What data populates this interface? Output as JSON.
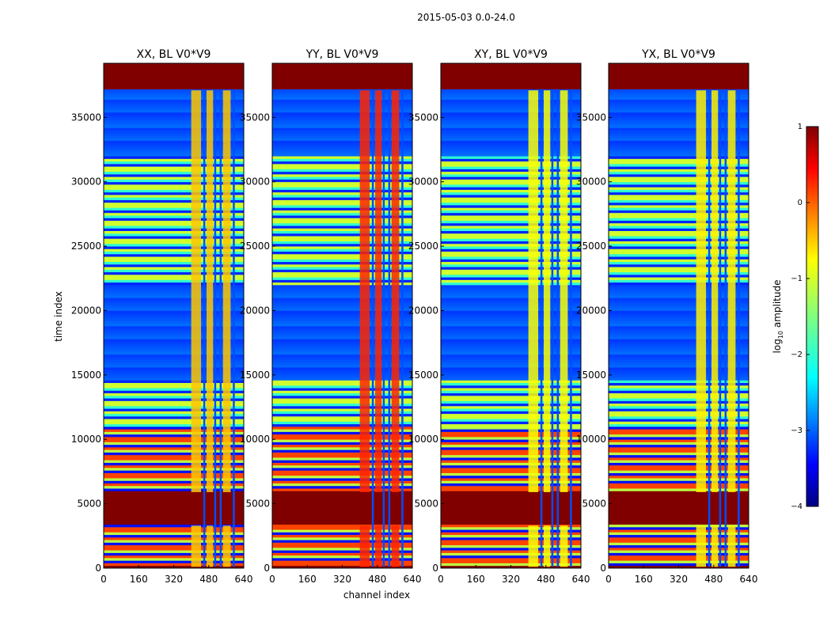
{
  "chart_data": {
    "type": "heatmap",
    "title": "2015-05-03 0.0-24.0",
    "xlabel": "channel index",
    "ylabel": "time index",
    "xlim": [
      0,
      640
    ],
    "ylim": [
      0,
      39200
    ],
    "x_ticks": [
      0,
      160,
      320,
      480,
      640
    ],
    "y_ticks": [
      0,
      5000,
      10000,
      15000,
      20000,
      25000,
      30000,
      35000
    ],
    "colormap": "jet",
    "colorbar": {
      "label": "log10 amplitude",
      "range": [
        -4,
        1
      ],
      "ticks": [
        1,
        0,
        -1,
        -2,
        -3,
        -4
      ],
      "tick_labels": [
        "1",
        "0",
        "−1",
        "−2",
        "−3",
        "−4"
      ]
    },
    "panels": [
      {
        "title": "XX, BL V0*V9",
        "hot_cols": [
          [
            400,
            445
          ],
          [
            470,
            500
          ],
          [
            545,
            580
          ]
        ],
        "rfi_level": -0.6
      },
      {
        "title": "YY, BL V0*V9",
        "hot_cols": [
          [
            400,
            445
          ],
          [
            470,
            500
          ],
          [
            545,
            580
          ]
        ],
        "rfi_level": 0.2
      },
      {
        "title": "XY, BL V0*V9",
        "hot_cols": [
          [
            400,
            445
          ],
          [
            470,
            500
          ],
          [
            545,
            580
          ]
        ],
        "rfi_level": -0.9
      },
      {
        "title": "YX, BL V0*V9",
        "hot_cols": [
          [
            400,
            445
          ],
          [
            470,
            500
          ],
          [
            545,
            580
          ]
        ],
        "rfi_level": -0.8
      }
    ],
    "flagged_time_ranges": [
      [
        0,
        100
      ],
      [
        3300,
        5900
      ],
      [
        37100,
        39200
      ]
    ],
    "noisy_time_ranges": [
      [
        300,
        3300
      ],
      [
        6000,
        10900
      ],
      [
        10900,
        14500
      ],
      [
        24000,
        32000
      ]
    ],
    "quiet_time_ranges": [
      [
        14500,
        22000
      ],
      [
        32000,
        37100
      ]
    ]
  }
}
